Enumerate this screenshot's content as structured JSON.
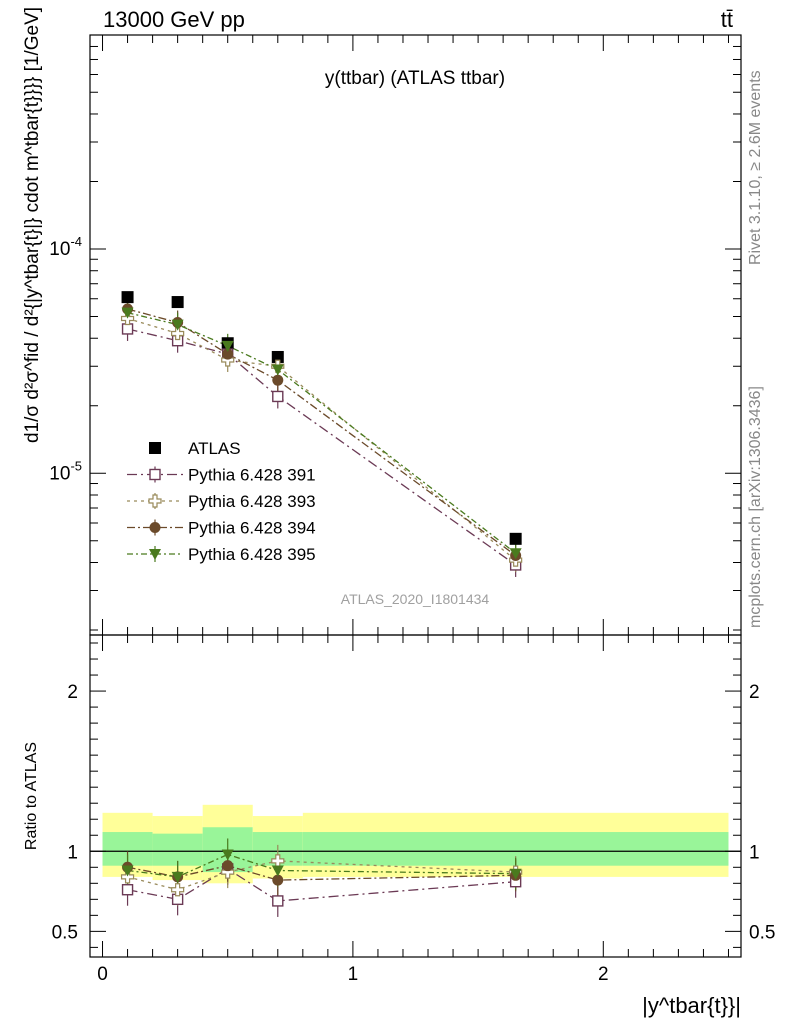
{
  "header": {
    "left": "13000 GeV pp",
    "right": "tt̄"
  },
  "side_text": {
    "rivet": "Rivet 3.1.10, ≥ 2.6M events",
    "mcplots": "mcplots.cern.ch [arXiv:1306.3436]"
  },
  "chart_data": [
    {
      "type": "scatter",
      "title": "y(ttbar) (ATLAS ttbar)",
      "watermark": "ATLAS_2020_I1801434",
      "ylabel": "d1/σ d²σ^fid / d²{|y^tbar{t}|} cdot m^tbar{t}}}} [1/GeV]",
      "yscale": "log",
      "xlim": [
        -0.05,
        2.55
      ],
      "ylim": [
        1.9e-06,
        0.0009
      ],
      "ytick_labels": [
        "10^-5",
        "10^-4"
      ],
      "legend_placement": "lower-left",
      "x": [
        0.1,
        0.3,
        0.5,
        0.7,
        1.65
      ],
      "series": [
        {
          "name": "ATLAS",
          "marker": "filled-square",
          "color": "#000000",
          "values": [
            6.1e-05,
            5.8e-05,
            3.8e-05,
            3.3e-05,
            5.1e-06
          ]
        },
        {
          "name": "Pythia 6.428 391",
          "marker": "open-square",
          "color": "#6b3a55",
          "values": [
            4.4e-05,
            3.9e-05,
            3.4e-05,
            2.2e-05,
            3.9e-06
          ]
        },
        {
          "name": "Pythia 6.428 393",
          "marker": "open-plus",
          "color": "#998a5a",
          "values": [
            4.9e-05,
            4.2e-05,
            3.2e-05,
            3e-05,
            4.1e-06
          ]
        },
        {
          "name": "Pythia 6.428 394",
          "marker": "filled-circle",
          "color": "#6b4a2a",
          "values": [
            5.4e-05,
            4.7e-05,
            3.4e-05,
            2.6e-05,
            4.3e-06
          ]
        },
        {
          "name": "Pythia 6.428 395",
          "marker": "filled-triangle-down",
          "color": "#4a7a1e",
          "values": [
            5.2e-05,
            4.6e-05,
            3.7e-05,
            2.9e-05,
            4.4e-06
          ]
        }
      ]
    },
    {
      "type": "scatter",
      "ylabel": "Ratio to ATLAS",
      "xlabel": "|y^tbar{t}}|",
      "xlim": [
        -0.05,
        2.55
      ],
      "ylim": [
        0.34,
        2.35
      ],
      "xtick_labels": [
        "0",
        "1",
        "2"
      ],
      "ytick_labels": [
        "0.5",
        "1",
        "2"
      ],
      "reference_line": 1,
      "x": [
        0.1,
        0.3,
        0.5,
        0.7,
        1.65
      ],
      "bands": {
        "edges": [
          0.0,
          0.2,
          0.4,
          0.6,
          0.8,
          2.5
        ],
        "inner_color": "#99f599",
        "outer_color": "#ffff99",
        "inner_low": [
          0.91,
          0.91,
          0.87,
          0.91,
          0.91
        ],
        "inner_high": [
          1.12,
          1.11,
          1.15,
          1.12,
          1.12
        ],
        "outer_low": [
          0.84,
          0.82,
          0.8,
          0.83,
          0.84
        ],
        "outer_high": [
          1.24,
          1.22,
          1.29,
          1.22,
          1.24
        ]
      },
      "series": [
        {
          "name": "Pythia 6.428 391",
          "values": [
            0.76,
            0.7,
            0.89,
            0.69,
            0.81
          ]
        },
        {
          "name": "Pythia 6.428 393",
          "values": [
            0.84,
            0.76,
            0.87,
            0.94,
            0.87
          ]
        },
        {
          "name": "Pythia 6.428 394",
          "values": [
            0.9,
            0.84,
            0.91,
            0.82,
            0.85
          ]
        },
        {
          "name": "Pythia 6.428 395",
          "values": [
            0.88,
            0.84,
            0.98,
            0.88,
            0.86
          ]
        }
      ]
    }
  ]
}
